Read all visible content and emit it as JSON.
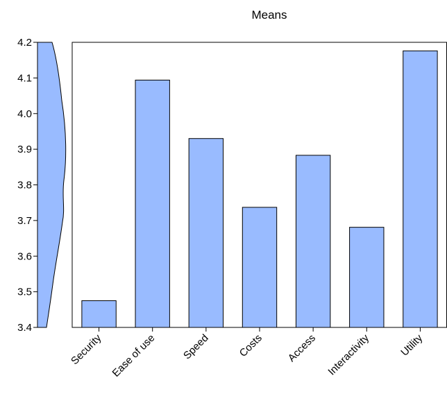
{
  "chart_data": {
    "type": "bar",
    "title": "Means",
    "categories": [
      "Security",
      "Ease of use",
      "Speed",
      "Costs",
      "Access",
      "Interactivity",
      "Utility"
    ],
    "values": [
      3.475,
      4.094,
      3.93,
      3.737,
      3.883,
      3.681,
      4.176
    ],
    "xlabel": "",
    "ylabel": "",
    "ylim": [
      3.4,
      4.2
    ],
    "yticks": [
      3.4,
      3.5,
      3.6,
      3.7,
      3.8,
      3.9,
      4.0,
      4.1,
      4.2
    ],
    "ytick_labels": [
      "3.4",
      "3.5",
      "3.6",
      "3.7",
      "3.8",
      "3.9",
      "4.0",
      "4.1",
      "4.2"
    ],
    "grid": false,
    "legend": "none",
    "colors": {
      "bar_fill": "#99BBFF",
      "bar_stroke": "#000000",
      "density_fill": "#99BBFF",
      "density_stroke": "#000000",
      "axis": "#000000"
    }
  }
}
